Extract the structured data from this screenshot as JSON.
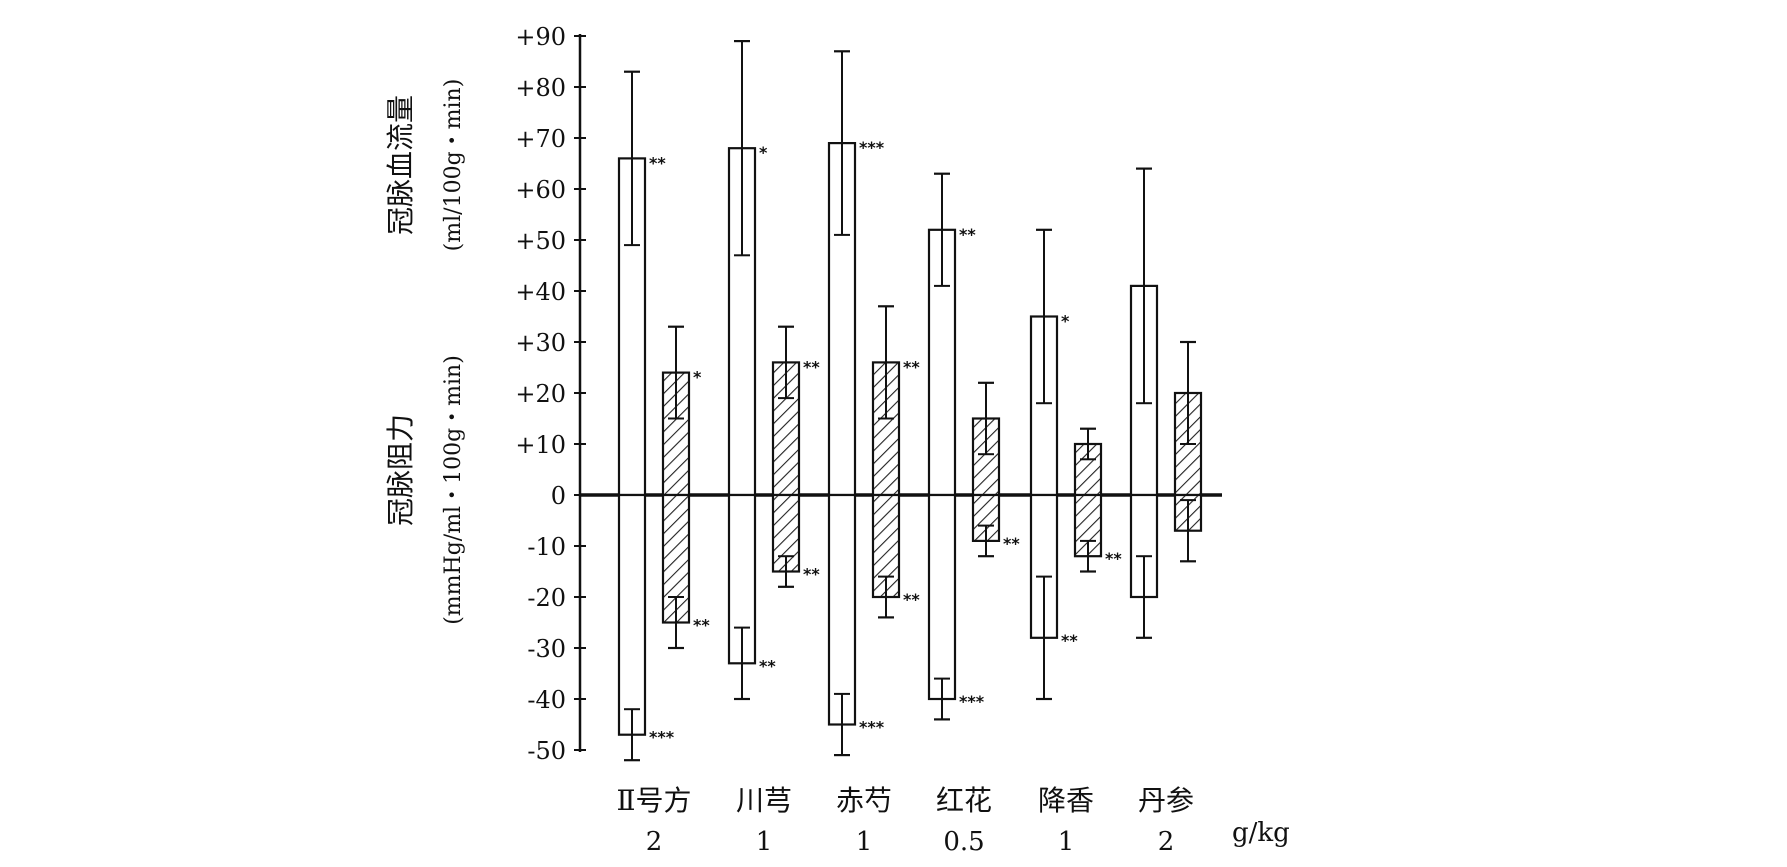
{
  "chart_data": {
    "type": "bar",
    "ylim": [
      -50,
      90
    ],
    "yticks": [
      90,
      80,
      70,
      60,
      50,
      40,
      30,
      20,
      10,
      0,
      -10,
      -20,
      -30,
      -40,
      -50
    ],
    "ytick_labels": [
      "+90",
      "+80",
      "+70",
      "+60",
      "+50",
      "+40",
      "+30",
      "+20",
      "+10",
      "0",
      "-10",
      "-20",
      "-30",
      "-40",
      "-50"
    ],
    "ylabel_upper": "冠脉血流量",
    "ylabel_upper_unit": "(ml/100g・min)",
    "ylabel_lower": "冠脉阻力",
    "ylabel_lower_unit": "(mmHg/ml・100g・min)",
    "x_unit": "g/kg",
    "categories": [
      {
        "name": "Ⅱ号方",
        "dose": "2"
      },
      {
        "name": "川芎",
        "dose": "1"
      },
      {
        "name": "赤芍",
        "dose": "1"
      },
      {
        "name": "红花",
        "dose": "0.5"
      },
      {
        "name": "降香",
        "dose": "1"
      },
      {
        "name": "丹参",
        "dose": "2"
      }
    ],
    "series": [
      {
        "style": "open",
        "upper": [
          66,
          68,
          69,
          52,
          35,
          41
        ],
        "upper_err": [
          17,
          21,
          18,
          11,
          17,
          23
        ],
        "upper_sig": [
          "**",
          "*",
          "***",
          "**",
          "*",
          ""
        ],
        "lower": [
          -47,
          -33,
          -45,
          -40,
          -28,
          -20
        ],
        "lower_err": [
          5,
          7,
          6,
          4,
          12,
          8
        ],
        "lower_sig": [
          "***",
          "**",
          "***",
          "***",
          "**",
          ""
        ]
      },
      {
        "style": "hatched",
        "upper": [
          24,
          26,
          26,
          15,
          10,
          20
        ],
        "upper_err": [
          9,
          7,
          11,
          7,
          3,
          10
        ],
        "upper_sig": [
          "*",
          "**",
          "**",
          "",
          "",
          ""
        ],
        "lower": [
          -25,
          -15,
          -20,
          -9,
          -12,
          -7
        ],
        "lower_err": [
          5,
          3,
          4,
          3,
          3,
          6
        ],
        "lower_sig": [
          "**",
          "**",
          "**",
          "**",
          "**",
          ""
        ]
      }
    ]
  }
}
